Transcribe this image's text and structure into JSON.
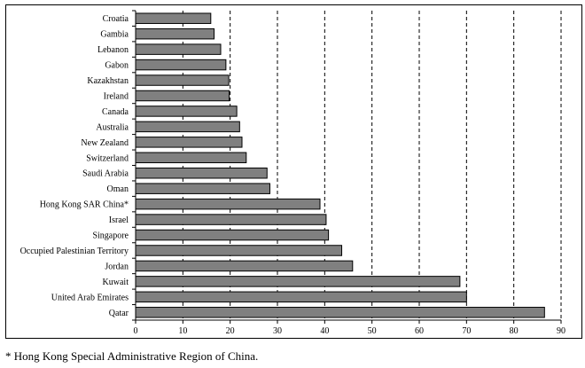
{
  "chart_data": {
    "type": "bar",
    "orientation": "horizontal",
    "categories": [
      "Croatia",
      "Gambia",
      "Lebanon",
      "Gabon",
      "Kazakhstan",
      "Ireland",
      "Canada",
      "Australia",
      "New Zealand",
      "Switzerland",
      "Saudi Arabia",
      "Oman",
      "Hong Kong SAR China*",
      "Israel",
      "Singapore",
      "Occupied Palestinian Territory",
      "Jordan",
      "Kuwait",
      "United Arab Emirates",
      "Qatar"
    ],
    "values": [
      15.9,
      16.6,
      18,
      19.1,
      19.7,
      19.8,
      21.4,
      22,
      22.5,
      23.4,
      27.8,
      28.4,
      39,
      40.3,
      40.8,
      43.6,
      45.9,
      68.6,
      70,
      86.5
    ],
    "xlim": [
      0,
      90
    ],
    "xticks": [
      0,
      10,
      20,
      30,
      40,
      50,
      60,
      70,
      80,
      90
    ],
    "grid": "vertical-dashed",
    "bar_color": "#808080",
    "title": "",
    "xlabel": "",
    "ylabel": ""
  },
  "footnote": "* Hong Kong Special Administrative Region of China."
}
